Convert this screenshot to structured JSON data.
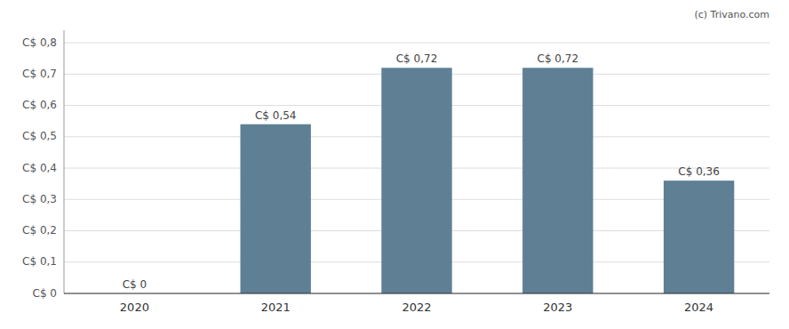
{
  "chart_data": {
    "type": "bar",
    "annotation": "(c) Trivano.com",
    "categories": [
      "2020",
      "2021",
      "2022",
      "2023",
      "2024"
    ],
    "values": [
      0.0,
      0.54,
      0.72,
      0.72,
      0.36
    ],
    "value_labels": [
      "C$ 0",
      "C$ 0,54",
      "C$ 0,72",
      "C$ 0,72",
      "C$ 0,36"
    ],
    "data_labels": true,
    "color": "#5f7f95",
    "ylim": [
      0,
      0.84
    ],
    "yticks": [
      {
        "value": 0.0,
        "label": "C$ 0"
      },
      {
        "value": 0.1,
        "label": "C$ 0,1"
      },
      {
        "value": 0.2,
        "label": "C$ 0,2"
      },
      {
        "value": 0.3,
        "label": "C$ 0,3"
      },
      {
        "value": 0.4,
        "label": "C$ 0,4"
      },
      {
        "value": 0.5,
        "label": "C$ 0,5"
      },
      {
        "value": 0.6,
        "label": "C$ 0,6"
      },
      {
        "value": 0.7,
        "label": "C$ 0,7"
      },
      {
        "value": 0.8,
        "label": "C$ 0,8"
      }
    ],
    "grid": true
  }
}
